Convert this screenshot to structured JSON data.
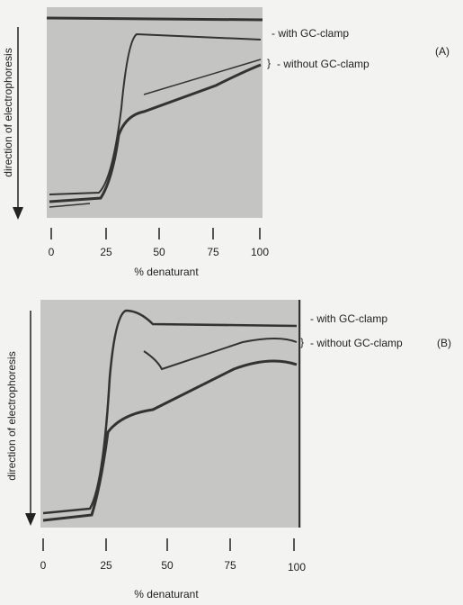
{
  "panels": [
    {
      "label": "(A)",
      "with_clamp": "- with GC-clamp",
      "without_clamp": "- without GC-clamp",
      "direction": "direction of electrophoresis",
      "ticks": [
        "0",
        "25",
        "50",
        "75",
        "100"
      ],
      "axis_label": "% denaturant"
    },
    {
      "label": "(B)",
      "with_clamp": "- with GC-clamp",
      "without_clamp": "- without GC-clamp",
      "direction": "direction of electrophoresis",
      "ticks": [
        "0",
        "25",
        "50",
        "75",
        "100"
      ],
      "axis_label": "% denaturant"
    }
  ]
}
